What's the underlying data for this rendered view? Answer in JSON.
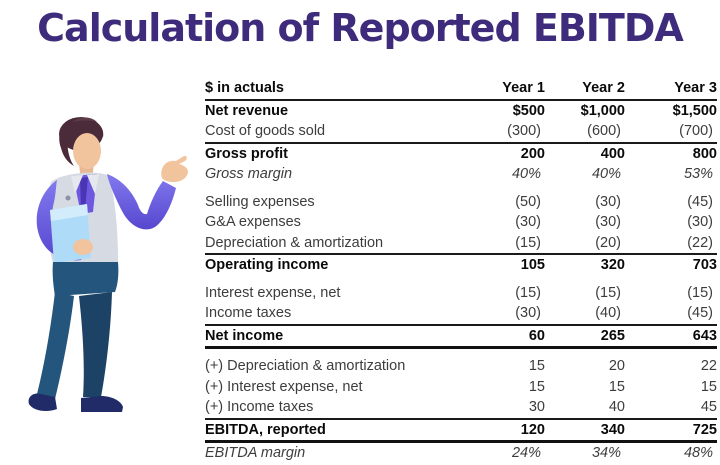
{
  "title": "Calculation of Reported EBITDA",
  "colors": {
    "title": "#3e2b7b",
    "rule": "#1a1a1a",
    "text": "#3d3d3d",
    "text_strong": "#0a0a0a",
    "illustration_shirt": "#6e63e0",
    "illustration_vest": "#d6dae3",
    "illustration_folder": "#aedcf8",
    "illustration_pants": "#24557c",
    "illustration_shoes": "#202b68",
    "illustration_skin": "#f2c49e",
    "illustration_hair": "#4b2b39"
  },
  "table": {
    "unit_label": "$ in actuals",
    "columns": [
      "Year 1",
      "Year 2",
      "Year 3"
    ],
    "rows": [
      {
        "label": "Net revenue",
        "values": [
          "$500",
          "$1,000",
          "$1,500"
        ],
        "style": "bold",
        "border": "none",
        "gap_after": false
      },
      {
        "label": "Cost of goods sold",
        "values": [
          "(300)",
          "(600)",
          "(700)"
        ],
        "style": "normal",
        "border": "bottom",
        "gap_after": false
      },
      {
        "label": "Gross profit",
        "values": [
          "200",
          "400",
          "800"
        ],
        "style": "bold",
        "border": "none",
        "gap_after": false
      },
      {
        "label": "Gross margin",
        "values": [
          "40%",
          "40%",
          "53%"
        ],
        "style": "italic",
        "border": "none",
        "gap_after": true
      },
      {
        "label": "Selling expenses",
        "values": [
          "(50)",
          "(30)",
          "(45)"
        ],
        "style": "normal",
        "border": "none",
        "gap_after": false
      },
      {
        "label": "G&A expenses",
        "values": [
          "(30)",
          "(30)",
          "(30)"
        ],
        "style": "normal",
        "border": "none",
        "gap_after": false
      },
      {
        "label": "Depreciation & amortization",
        "values": [
          "(15)",
          "(20)",
          "(22)"
        ],
        "style": "normal",
        "border": "bottom",
        "gap_after": false
      },
      {
        "label": "Operating income",
        "values": [
          "105",
          "320",
          "703"
        ],
        "style": "bold",
        "border": "none",
        "gap_after": true
      },
      {
        "label": "Interest expense, net",
        "values": [
          "(15)",
          "(15)",
          "(15)"
        ],
        "style": "normal",
        "border": "none",
        "gap_after": false
      },
      {
        "label": "Income taxes",
        "values": [
          "(30)",
          "(40)",
          "(45)"
        ],
        "style": "normal",
        "border": "bottom",
        "gap_after": false
      },
      {
        "label": "Net income",
        "values": [
          "60",
          "265",
          "643"
        ],
        "style": "bold",
        "border": "bottom-thick",
        "gap_after": true
      },
      {
        "label": "(+) Depreciation & amortization",
        "values": [
          "15",
          "20",
          "22"
        ],
        "style": "normal",
        "border": "none",
        "gap_after": false
      },
      {
        "label": "(+) Interest expense, net",
        "values": [
          "15",
          "15",
          "15"
        ],
        "style": "normal",
        "border": "none",
        "gap_after": false
      },
      {
        "label": "(+) Income taxes",
        "values": [
          "30",
          "40",
          "45"
        ],
        "style": "normal",
        "border": "bottom",
        "gap_after": false
      },
      {
        "label": "EBITDA, reported",
        "values": [
          "120",
          "340",
          "725"
        ],
        "style": "bold",
        "border": "bottom-thick",
        "gap_after": false
      },
      {
        "label": "EBITDA margin",
        "values": [
          "24%",
          "34%",
          "48%"
        ],
        "style": "italic",
        "border": "none",
        "gap_after": false
      }
    ]
  }
}
